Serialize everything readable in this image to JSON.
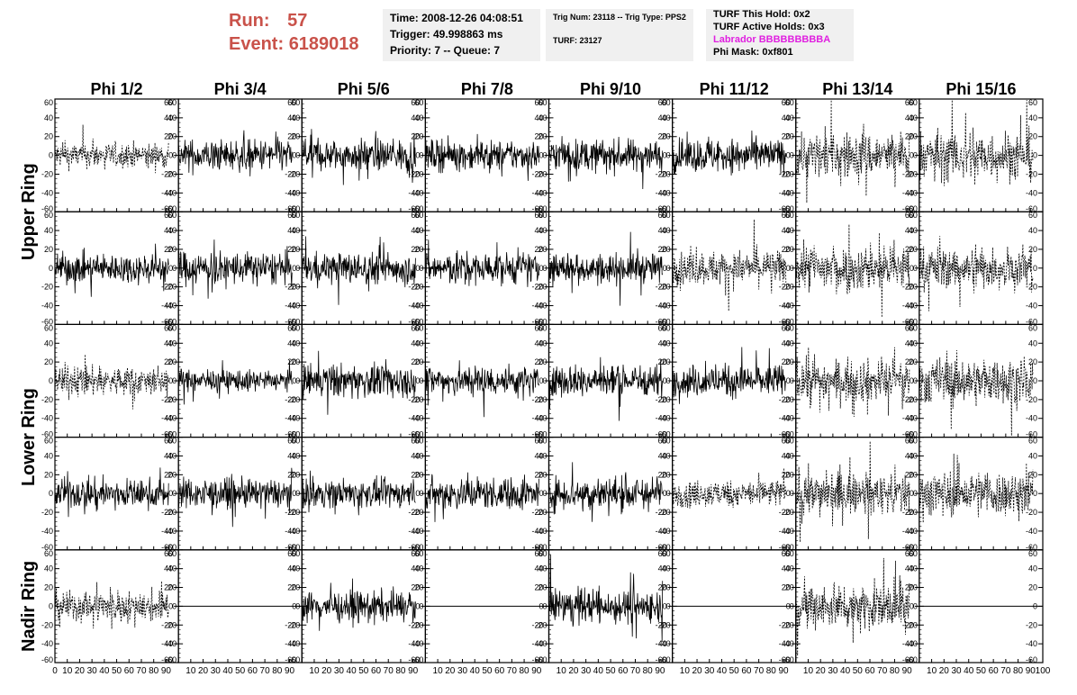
{
  "header": {
    "run_label": "Run:",
    "run_value": "57",
    "event_label": "Event:",
    "event_value": "6189018",
    "time": "Time: 2008-12-26 04:08:51",
    "trigger": "Trigger: 49.998863 ms",
    "priority": "Priority: 7 -- Queue: 7",
    "trig_num": "Trig Num: 23118 -- Trig Type: PPS2",
    "turf": "TURF: 23127",
    "turf_hold": "TURF This Hold: 0x2",
    "turf_active": "TURF Active Holds: 0x3",
    "labrador": "Labrador BBBBBBBBBA",
    "phi_mask": "Phi Mask: 0xf801",
    "labrador_color": "#e020e0",
    "run_color": "#c9524a"
  },
  "chart_data": {
    "type": "line",
    "columns": [
      "Phi 1/2",
      "Phi 3/4",
      "Phi 5/6",
      "Phi 7/8",
      "Phi 9/10",
      "Phi 11/12",
      "Phi 13/14",
      "Phi 15/16"
    ],
    "rows": [
      "Upper Ring",
      "Lower Ring",
      "Nadir Ring"
    ],
    "xlim": [
      0,
      100
    ],
    "ylim": [
      -60,
      60
    ],
    "x_ticks": [
      0,
      10,
      20,
      30,
      40,
      50,
      60,
      70,
      80,
      90,
      100
    ],
    "y_ticks": [
      -60,
      -40,
      -20,
      0,
      20,
      40,
      60
    ],
    "x_tick_labels": [
      "0",
      "10",
      "20",
      "30",
      "40",
      "50",
      "60",
      "70",
      "80",
      "90",
      "100"
    ],
    "y_tick_labels": [
      "-60",
      "-40",
      "-20",
      "0",
      "20",
      "40",
      "60"
    ],
    "panel_rows": [
      {
        "ring": "Upper Ring",
        "styles": [
          "dashed",
          "solid",
          "solid",
          "solid",
          "solid",
          "solid",
          "dashed",
          "dashed"
        ],
        "amplitudes": [
          12,
          15,
          15,
          14,
          15,
          16,
          22,
          24
        ]
      },
      {
        "ring": "Upper Ring",
        "styles": [
          "solid",
          "solid",
          "solid",
          "solid",
          "solid",
          "dashed",
          "dashed",
          "dashed"
        ],
        "amplitudes": [
          14,
          16,
          15,
          15,
          14,
          16,
          22,
          20
        ]
      },
      {
        "ring": "Lower Ring",
        "styles": [
          "dashed",
          "solid",
          "solid",
          "solid",
          "solid",
          "solid",
          "dashed",
          "dashed"
        ],
        "amplitudes": [
          14,
          10,
          16,
          15,
          15,
          15,
          20,
          22
        ]
      },
      {
        "ring": "Lower Ring",
        "styles": [
          "solid",
          "solid",
          "solid",
          "solid",
          "solid",
          "dashed",
          "dashed",
          "dashed"
        ],
        "amplitudes": [
          14,
          14,
          13,
          15,
          16,
          13,
          20,
          22
        ]
      },
      {
        "ring": "Nadir Ring",
        "styles": [
          "dashed",
          "flat",
          "solid",
          "flat",
          "solid",
          "flat",
          "dashed",
          "flat"
        ],
        "amplitudes": [
          15,
          0,
          14,
          0,
          16,
          0,
          22,
          0
        ]
      }
    ]
  }
}
